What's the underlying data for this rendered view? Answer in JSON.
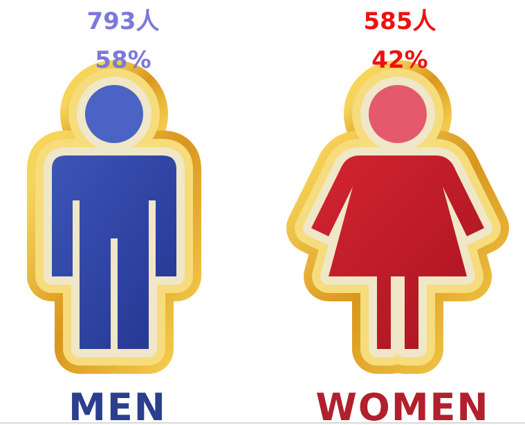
{
  "men": {
    "count": "793人",
    "percent": "58%",
    "label": "MEN"
  },
  "women": {
    "count": "585人",
    "percent": "42%",
    "label": "WOMEN"
  }
}
